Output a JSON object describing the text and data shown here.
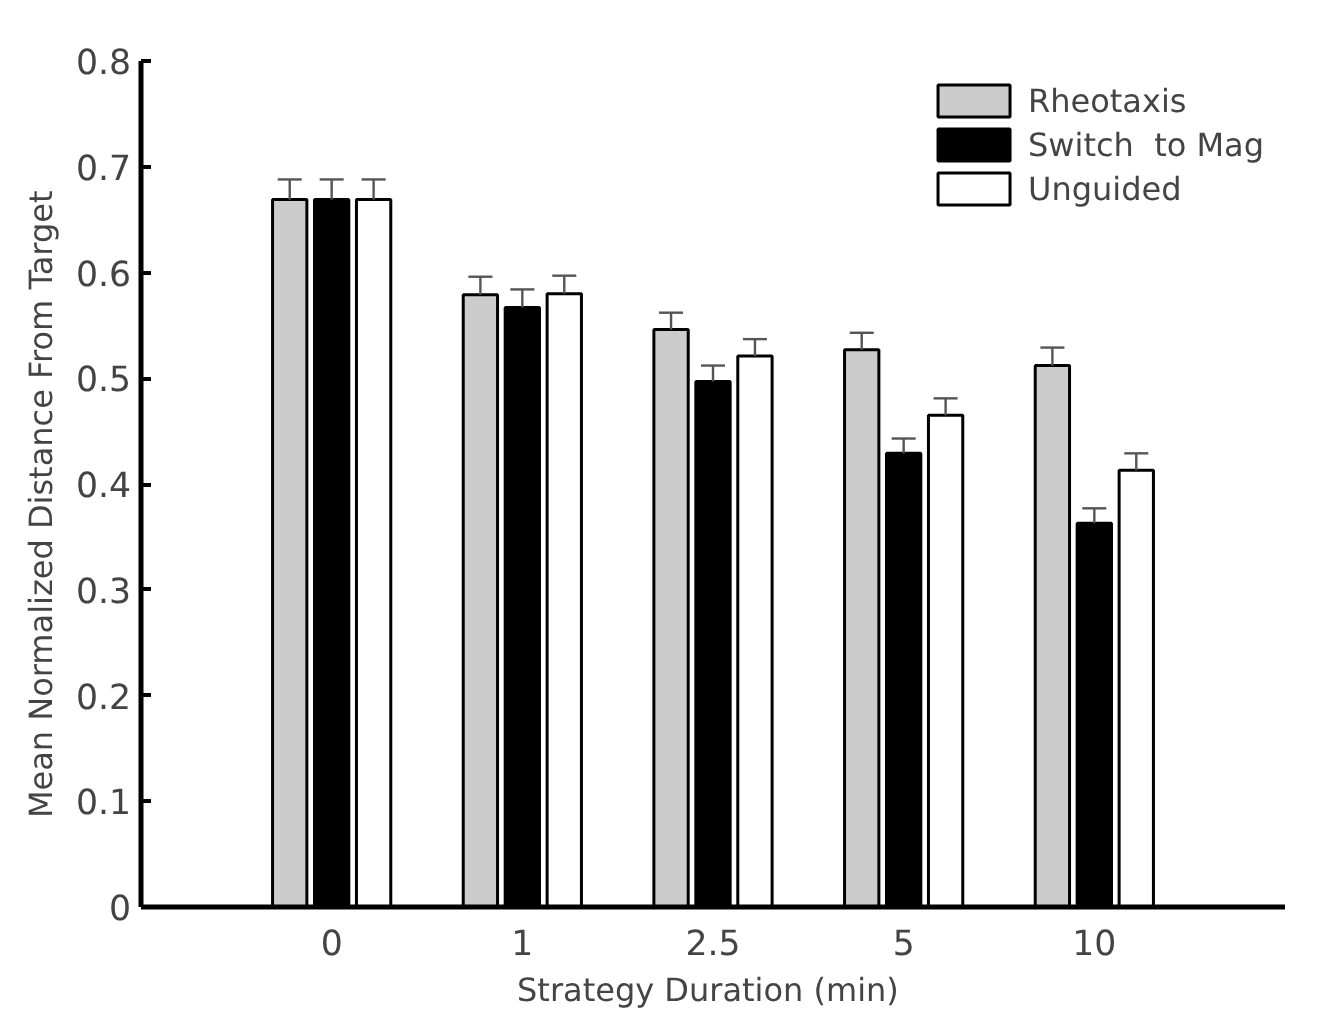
{
  "chart_data": {
    "type": "bar",
    "xlabel": "Strategy  Duration (min)",
    "ylabel": "Mean  Normalized  Distance  From  Target",
    "categories": [
      "0",
      "1",
      "2.5",
      "5",
      "10"
    ],
    "series": [
      {
        "name": "Rheotaxis",
        "color": "#cccccc",
        "values": [
          0.669,
          0.579,
          0.546,
          0.527,
          0.512
        ],
        "errors": [
          [
            0.669,
            0.688
          ],
          [
            0.579,
            0.596
          ],
          [
            0.546,
            0.562
          ],
          [
            0.527,
            0.543
          ],
          [
            0.512,
            0.529
          ]
        ]
      },
      {
        "name": "Switch  to Mag",
        "color": "#000000",
        "values": [
          0.669,
          0.567,
          0.497,
          0.429,
          0.363
        ],
        "errors": [
          [
            0.669,
            0.688
          ],
          [
            0.567,
            0.584
          ],
          [
            0.497,
            0.512
          ],
          [
            0.429,
            0.443
          ],
          [
            0.363,
            0.377
          ]
        ]
      },
      {
        "name": "Unguided",
        "color": "#ffffff",
        "values": [
          0.669,
          0.58,
          0.521,
          0.465,
          0.413
        ],
        "errors": [
          [
            0.669,
            0.688
          ],
          [
            0.58,
            0.597
          ],
          [
            0.521,
            0.537
          ],
          [
            0.465,
            0.481
          ],
          [
            0.413,
            0.429
          ]
        ]
      }
    ],
    "ylim": [
      0,
      0.8
    ],
    "yticks": [
      0,
      0.1,
      0.2,
      0.3,
      0.4,
      0.5,
      0.6,
      0.7,
      0.8
    ],
    "grid": false,
    "legend": "top right"
  }
}
